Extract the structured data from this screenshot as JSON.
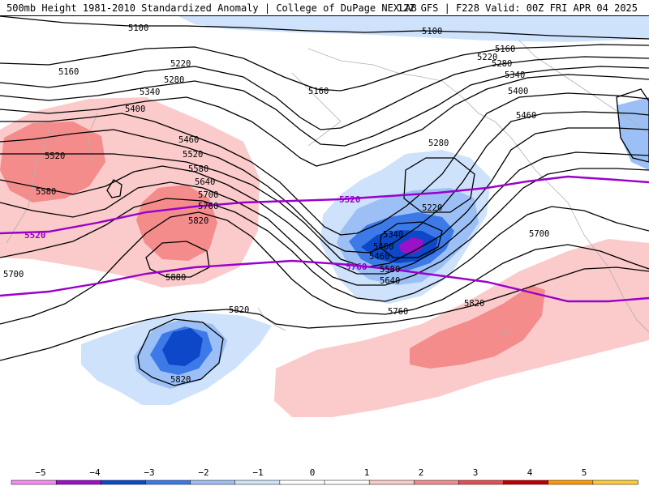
{
  "header": {
    "left_title": "500mb Height 1981-2010 Standardized Anomaly | College of DuPage NEXLAB",
    "right_title": "12Z GFS | F228 Valid: 00Z FRI APR 04 2025"
  },
  "contour_labels": {
    "l5100a": "5100",
    "l5100b": "5100",
    "l5160a": "5160",
    "l5160b": "5160",
    "l5160c": "5160",
    "l5220a": "5220",
    "l5220b": "5220",
    "l5220c": "5220",
    "l5280a": "5280",
    "l5280b": "5280",
    "l5280c": "5280",
    "l5340a": "5340",
    "l5340b": "5340",
    "l5340c": "5340",
    "l5400a": "5400",
    "l5400b": "5400",
    "l5400c": "5400",
    "l5460a": "5460",
    "l5460b": "5460",
    "l5460c": "5460",
    "l5520a": "5520",
    "l5520b": "5520",
    "l5580a": "5580",
    "l5580b": "5580",
    "l5580c": "5580",
    "l5640a": "5640",
    "l5640b": "5640",
    "l5700a": "5700",
    "l5700b": "5700",
    "l5700c": "5700",
    "l5760a": "5760",
    "l5760b": "5760",
    "l5820a": "5820",
    "l5820b": "5820",
    "l5820c": "5820",
    "l5820d": "5820",
    "l5880": "5880"
  },
  "purple_labels": {
    "p5520a": "5520",
    "p5520b": "5520",
    "p5760": "5760"
  },
  "colorbar": {
    "ticks": [
      "−5",
      "−4",
      "−3",
      "−2",
      "−1",
      "0",
      "1",
      "2",
      "3",
      "4",
      "5"
    ],
    "colors": [
      "#f78bf5",
      "#9b10c9",
      "#0c48c7",
      "#3d7ae8",
      "#9cc0f5",
      "#cfe2fb",
      "#ffffff",
      "#ffffff",
      "#fbcaca",
      "#f48c8c",
      "#e55050",
      "#c00000",
      "#ff9900",
      "#ffcc33"
    ]
  }
}
